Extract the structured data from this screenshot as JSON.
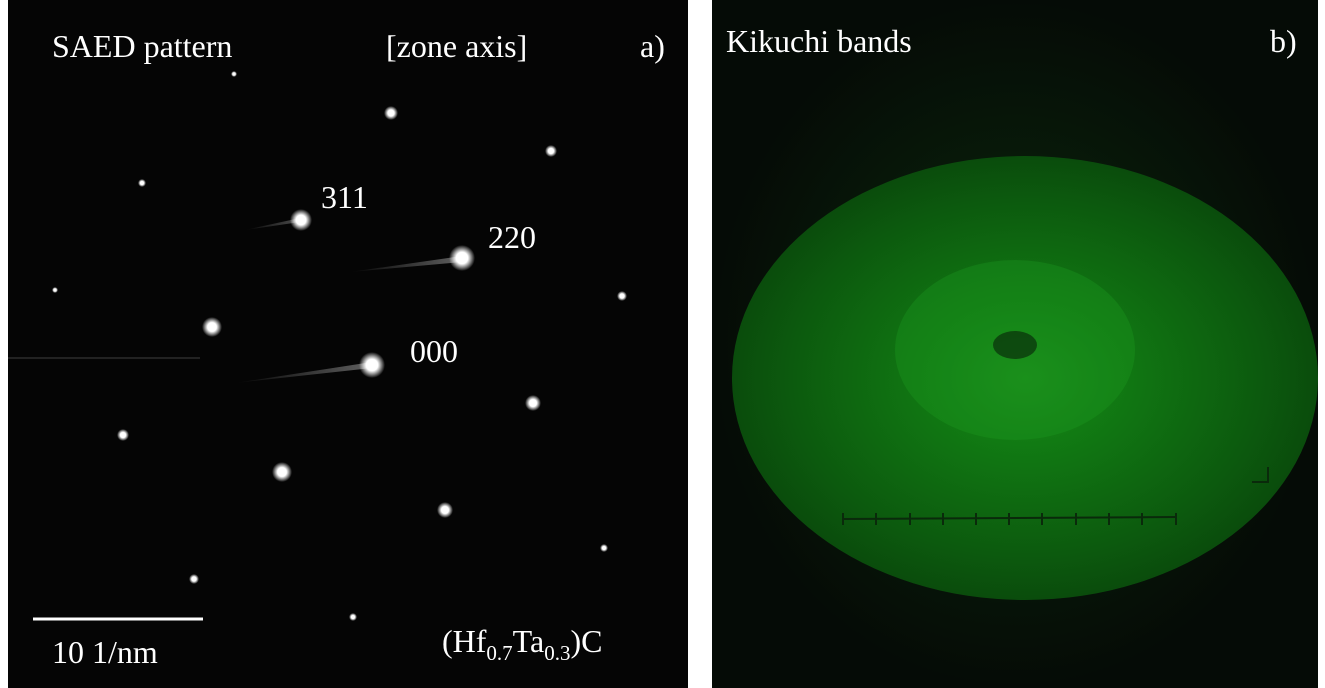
{
  "panels": {
    "a": {
      "title": "SAED pattern",
      "zone": "[zone axis]",
      "label": "a)",
      "spots": [
        "311",
        "220",
        "000"
      ],
      "scale_bar": "10 1/nm",
      "formula": [
        "(Hf",
        "0.7",
        "Ta",
        "0.3",
        ")C"
      ]
    },
    "b": {
      "title": "Kikuchi bands",
      "label": "b)"
    }
  }
}
